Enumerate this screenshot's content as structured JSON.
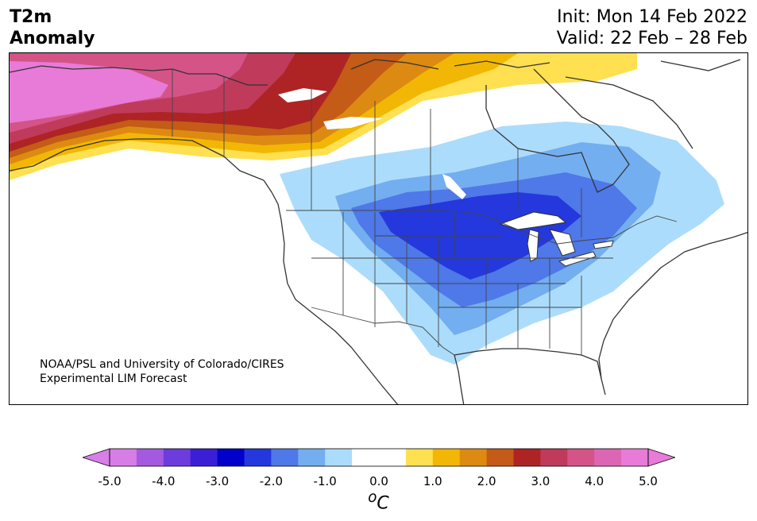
{
  "header": {
    "title_line1": "T2m",
    "title_line2": "Anomaly",
    "init": "Init: Mon 14 Feb 2022",
    "valid": "Valid: 22 Feb – 28 Feb"
  },
  "credit": {
    "line1": "NOAA/PSL and University of Colorado/CIRES",
    "line2": "Experimental LIM Forecast"
  },
  "colorbar": {
    "ticks": [
      "-5.0",
      "-4.0",
      "-3.0",
      "-2.0",
      "-1.0",
      "0.0",
      "1.0",
      "2.0",
      "3.0",
      "4.0",
      "5.0"
    ],
    "unit_sup": "o",
    "unit": "C",
    "under_color": "#d97ee8",
    "over_color": "#e87ad8",
    "colors": [
      "#d77de6",
      "#a45ae0",
      "#6c3cdc",
      "#3b1fd6",
      "#0000cc",
      "#2438dd",
      "#4f78e8",
      "#73aef0",
      "#acdcfb",
      "#ffffff",
      "#ffffff",
      "#fee050",
      "#f2b704",
      "#dd8a12",
      "#c45b16",
      "#ae2424",
      "#c03a5c",
      "#d45488",
      "#dd66b4",
      "#e87ad8"
    ]
  }
}
